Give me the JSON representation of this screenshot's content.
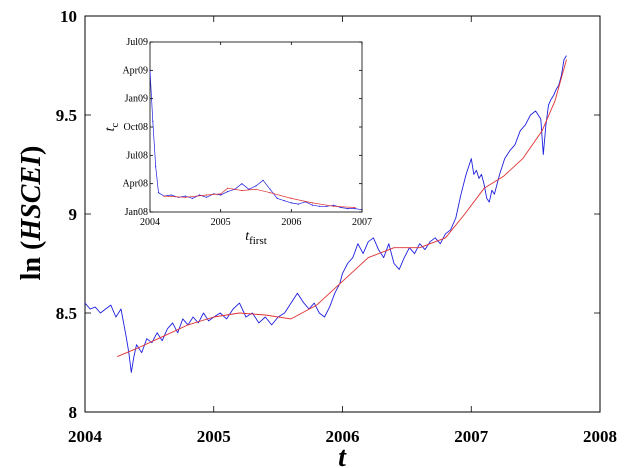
{
  "colors": {
    "raw": "#1f1fe0",
    "fit": "#e03030",
    "axis": "#000000",
    "background": "#ffffff"
  },
  "chart_data": [
    {
      "type": "line",
      "xlabel": "t",
      "ylabel_prefix": "ln (",
      "ylabel_var": "HSCEI",
      "ylabel_suffix": ")",
      "xlim": [
        2004,
        2008
      ],
      "ylim": [
        8,
        10
      ],
      "xticks": [
        2004,
        2005,
        2006,
        2007,
        2008
      ],
      "yticks": [
        8,
        8.5,
        9,
        9.5,
        10
      ],
      "ytick_labels": [
        "8",
        "8.5",
        "9",
        "9.5",
        "10"
      ],
      "grid": false,
      "legend": "none",
      "series": [
        {
          "style": "raw",
          "x": [
            2004.0,
            2004.04,
            2004.08,
            2004.12,
            2004.16,
            2004.2,
            2004.24,
            2004.28,
            2004.32,
            2004.34,
            2004.36,
            2004.38,
            2004.4,
            2004.44,
            2004.48,
            2004.52,
            2004.56,
            2004.6,
            2004.64,
            2004.68,
            2004.72,
            2004.76,
            2004.8,
            2004.84,
            2004.88,
            2004.92,
            2004.96,
            2005.0,
            2005.05,
            2005.1,
            2005.15,
            2005.2,
            2005.25,
            2005.3,
            2005.35,
            2005.4,
            2005.45,
            2005.5,
            2005.55,
            2005.6,
            2005.65,
            2005.7,
            2005.74,
            2005.78,
            2005.82,
            2005.86,
            2005.9,
            2005.94,
            2005.98,
            2006.0,
            2006.04,
            2006.08,
            2006.12,
            2006.16,
            2006.2,
            2006.24,
            2006.28,
            2006.32,
            2006.36,
            2006.4,
            2006.44,
            2006.48,
            2006.52,
            2006.56,
            2006.6,
            2006.64,
            2006.68,
            2006.72,
            2006.76,
            2006.8,
            2006.84,
            2006.88,
            2006.92,
            2006.96,
            2007.0,
            2007.02,
            2007.04,
            2007.06,
            2007.08,
            2007.1,
            2007.12,
            2007.14,
            2007.16,
            2007.18,
            2007.22,
            2007.26,
            2007.3,
            2007.34,
            2007.38,
            2007.42,
            2007.46,
            2007.5,
            2007.54,
            2007.56,
            2007.58,
            2007.6,
            2007.62,
            2007.64,
            2007.66,
            2007.68,
            2007.7,
            2007.72,
            2007.74
          ],
          "y": [
            8.55,
            8.52,
            8.53,
            8.5,
            8.52,
            8.54,
            8.48,
            8.52,
            8.38,
            8.3,
            8.2,
            8.28,
            8.34,
            8.3,
            8.37,
            8.35,
            8.4,
            8.36,
            8.42,
            8.45,
            8.4,
            8.47,
            8.44,
            8.48,
            8.45,
            8.5,
            8.46,
            8.48,
            8.5,
            8.47,
            8.52,
            8.55,
            8.48,
            8.5,
            8.45,
            8.48,
            8.44,
            8.48,
            8.5,
            8.55,
            8.6,
            8.55,
            8.52,
            8.55,
            8.5,
            8.48,
            8.53,
            8.6,
            8.65,
            8.7,
            8.75,
            8.78,
            8.85,
            8.8,
            8.86,
            8.88,
            8.82,
            8.78,
            8.85,
            8.75,
            8.72,
            8.78,
            8.83,
            8.8,
            8.85,
            8.82,
            8.86,
            8.88,
            8.85,
            8.9,
            8.92,
            8.98,
            9.1,
            9.2,
            9.28,
            9.2,
            9.22,
            9.18,
            9.2,
            9.15,
            9.08,
            9.06,
            9.12,
            9.1,
            9.2,
            9.28,
            9.32,
            9.35,
            9.42,
            9.45,
            9.5,
            9.52,
            9.48,
            9.3,
            9.45,
            9.55,
            9.58,
            9.6,
            9.63,
            9.65,
            9.7,
            9.78,
            9.8
          ]
        },
        {
          "style": "fit",
          "x": [
            2004.25,
            2004.4,
            2004.6,
            2004.8,
            2005.0,
            2005.2,
            2005.4,
            2005.6,
            2005.8,
            2006.0,
            2006.2,
            2006.4,
            2006.6,
            2006.8,
            2006.95,
            2007.1,
            2007.25,
            2007.4,
            2007.55,
            2007.65,
            2007.74
          ],
          "y": [
            8.28,
            8.32,
            8.38,
            8.44,
            8.48,
            8.5,
            8.49,
            8.47,
            8.54,
            8.66,
            8.78,
            8.83,
            8.83,
            8.88,
            9.0,
            9.13,
            9.19,
            9.28,
            9.42,
            9.57,
            9.78
          ]
        }
      ]
    },
    {
      "type": "scatter",
      "xlabel": "t",
      "xlabel_sub": "first",
      "ylabel": "t",
      "ylabel_sub": "c",
      "xlim": [
        2004,
        2007
      ],
      "xticks": [
        2004,
        2005,
        2006,
        2007
      ],
      "ylim": [
        2008.0,
        2009.5
      ],
      "yticks": [
        2008.0,
        2008.25,
        2008.5,
        2008.75,
        2009.0,
        2009.25,
        2009.5
      ],
      "ytick_labels": [
        "Jan08",
        "Apr08",
        "Jul08",
        "Oct08",
        "Jan09",
        "Apr09",
        "Jul09"
      ],
      "grid": false,
      "legend": "none",
      "series": [
        {
          "style": "raw",
          "x": [
            2004.0,
            2004.04,
            2004.08,
            2004.12,
            2004.2,
            2004.3,
            2004.4,
            2004.5,
            2004.6,
            2004.7,
            2004.8,
            2004.9,
            2005.0,
            2005.1,
            2005.2,
            2005.3,
            2005.4,
            2005.5,
            2005.6,
            2005.7,
            2005.8,
            2005.9,
            2006.0,
            2006.1,
            2006.2,
            2006.3,
            2006.4,
            2006.5,
            2006.6,
            2006.7,
            2006.8,
            2006.9,
            2007.0
          ],
          "y": [
            2009.25,
            2008.8,
            2008.4,
            2008.17,
            2008.14,
            2008.15,
            2008.13,
            2008.14,
            2008.12,
            2008.15,
            2008.13,
            2008.16,
            2008.15,
            2008.18,
            2008.2,
            2008.25,
            2008.2,
            2008.23,
            2008.28,
            2008.2,
            2008.12,
            2008.1,
            2008.08,
            2008.07,
            2008.09,
            2008.06,
            2008.05,
            2008.05,
            2008.06,
            2008.04,
            2008.03,
            2008.03,
            2008.02
          ]
        },
        {
          "style": "fit",
          "x": [
            2004.2,
            2004.5,
            2004.8,
            2005.0,
            2005.1,
            2005.3,
            2005.5,
            2005.7,
            2006.0,
            2006.3,
            2006.6,
            2006.9
          ],
          "y": [
            2008.14,
            2008.13,
            2008.15,
            2008.16,
            2008.21,
            2008.19,
            2008.2,
            2008.17,
            2008.12,
            2008.08,
            2008.05,
            2008.04
          ]
        }
      ]
    }
  ]
}
